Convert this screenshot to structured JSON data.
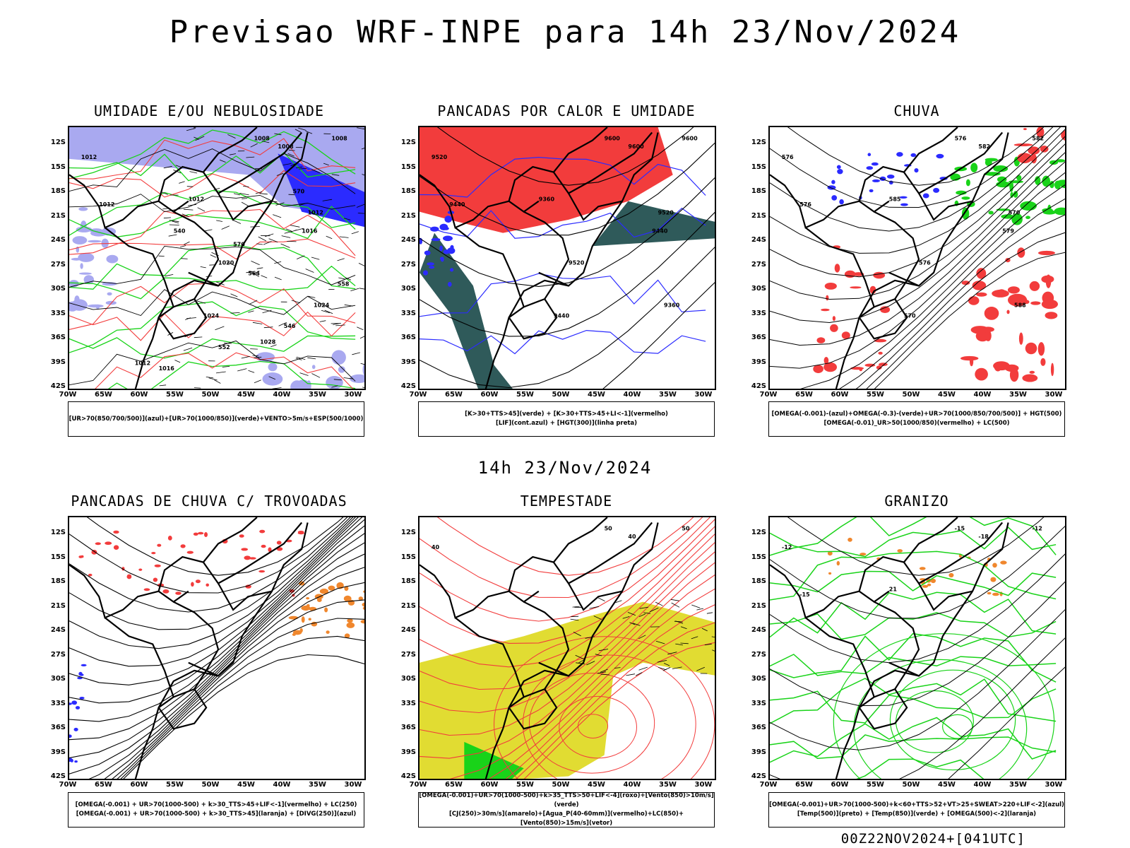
{
  "main_title": "Previsao WRF-INPE  para 14h 23/Nov/2024",
  "mid_title": "14h 23/Nov/2024",
  "footer": "00Z22NOV2024+[041UTC]",
  "lat_labels": [
    "12S",
    "15S",
    "18S",
    "21S",
    "24S",
    "27S",
    "30S",
    "33S",
    "36S",
    "39S",
    "42S"
  ],
  "lon_labels": [
    "70W",
    "65W",
    "60W",
    "55W",
    "50W",
    "45W",
    "40W",
    "35W",
    "30W"
  ],
  "colors": {
    "blue": "#2b2bff",
    "lavender": "#a9a9f0",
    "green": "#19d319",
    "red": "#f23c3c",
    "darkteal": "#2f5a5a",
    "yellow": "#e1dc32",
    "orange": "#f0872d"
  },
  "panels": [
    {
      "title": "UMIDADE E/OU NEBULOSIDADE",
      "legend": [
        "[UR>70(850/700/500)](azul)+[UR>70(1000/850)](verde)+VENTO>5m/s+ESP(500/1000)"
      ],
      "labels": [
        "1008",
        "1008",
        "1008",
        "1012",
        "1012",
        "1012",
        "1012",
        "1016",
        "1020",
        "1024",
        "1024",
        "1028",
        "1012",
        "1016",
        "570",
        "570",
        "564",
        "558",
        "552",
        "546",
        "540"
      ]
    },
    {
      "title": "PANCADAS POR CALOR E UMIDADE",
      "legend": [
        "[K>30+TTS>45](verde) + [K>30+TTS>45+LI<-1](vermelho)",
        "[LIF](cont.azul) + [HGT(300)](linha preta)"
      ],
      "labels": [
        "9600",
        "9600",
        "9600",
        "9520",
        "9440",
        "9360",
        "9520",
        "9440",
        "9520",
        "9440",
        "9360"
      ]
    },
    {
      "title": "CHUVA",
      "legend": [
        "[OMEGA(-0.001)-(azul)+OMEGA(-0.3)-(verde)+UR>70(1000/850/700/500)] + HGT(500)",
        "[OMEGA(-0.01)_UR>50(1000/850)(vermelho) + LC(500)"
      ],
      "labels": [
        "576",
        "582",
        "582",
        "576",
        "576",
        "585",
        "570",
        "579",
        "576",
        "570",
        "588"
      ]
    },
    {
      "title": "PANCADAS DE CHUVA C/ TROVOADAS",
      "legend": [
        "[OMEGA(-0.001) + UR>70(1000-500) + k>30_TTS>45+LIF<-1](vermelho) + LC(250)",
        "[OMEGA(-0.001) + UR>70(1000-500) + k>30_TTS>45](laranja) + [DIVG(250)](azul)"
      ],
      "labels": []
    },
    {
      "title": "TEMPESTADE",
      "legend": [
        "[OMEGA(-0.001)+UR>70(1000-500)+k>35_TTS>50+LIF<-4](roxo)+[Vento(850)>10m/s](verde)",
        "[CJ(250)>30m/s](amarelo)+[Agua_P(40-60mm)](vermelho)+LC(850)+[Vento(850)>15m/s](vetor)"
      ],
      "labels": [
        "50",
        "40",
        "50",
        "40"
      ]
    },
    {
      "title": "GRANIZO",
      "legend": [
        "[OMEGA(-0.001)+UR>70(1000-500)+k<60+TTS>52+VT>25+SWEAT>220+LIF<-2](azul)",
        "[Temp(500)](preto) + [Temp(850)](verde) + [OMEGA(500)<-2](laranja)"
      ],
      "labels": [
        "-15",
        "-18",
        "-12",
        "-12",
        "-15",
        "21"
      ]
    }
  ]
}
